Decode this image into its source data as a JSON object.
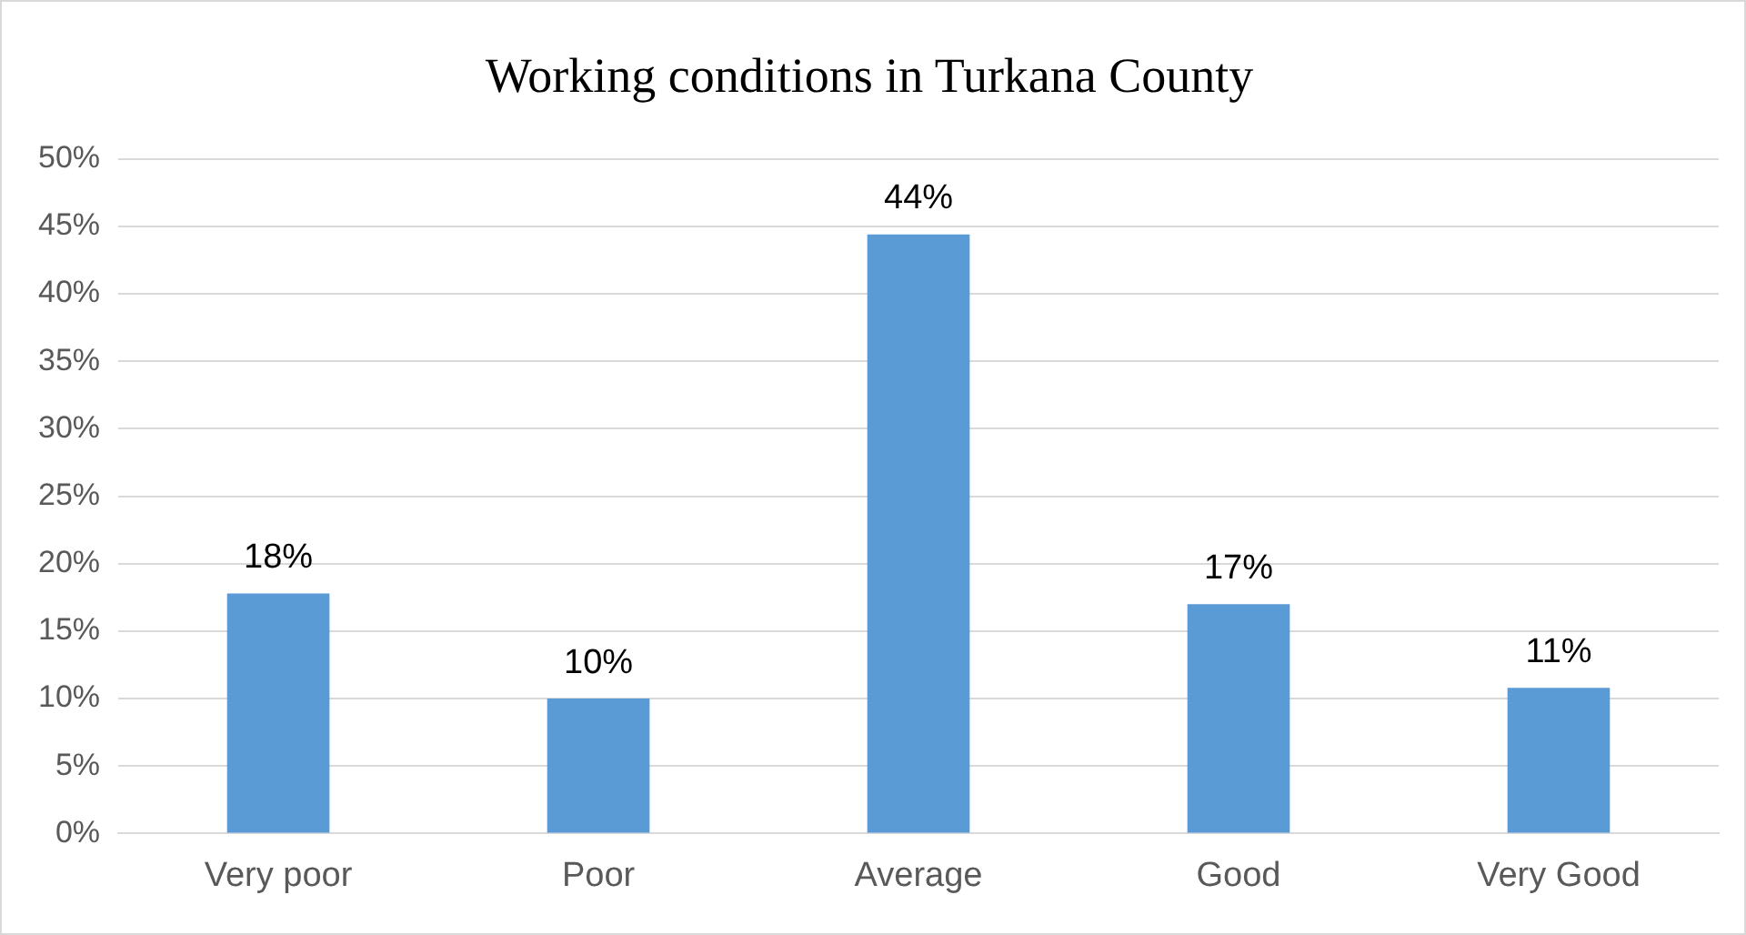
{
  "chart_data": {
    "type": "bar",
    "title": "Working conditions in Turkana County",
    "categories": [
      "Very poor",
      "Poor",
      "Average",
      "Good",
      "Very Good"
    ],
    "values": [
      17.8,
      10.0,
      44.4,
      17.0,
      10.8
    ],
    "value_labels": [
      "18%",
      "10%",
      "44%",
      "17%",
      "11%"
    ],
    "color": "#5b9bd5",
    "ylim": [
      0,
      50
    ],
    "yticks": [
      {
        "value": 0,
        "label": "0%"
      },
      {
        "value": 5,
        "label": "5%"
      },
      {
        "value": 10,
        "label": "10%"
      },
      {
        "value": 15,
        "label": "15%"
      },
      {
        "value": 20,
        "label": "20%"
      },
      {
        "value": 25,
        "label": "25%"
      },
      {
        "value": 30,
        "label": "30%"
      },
      {
        "value": 35,
        "label": "35%"
      },
      {
        "value": 40,
        "label": "40%"
      },
      {
        "value": 45,
        "label": "45%"
      },
      {
        "value": 50,
        "label": "50%"
      }
    ],
    "grid": "y",
    "legend": false
  }
}
